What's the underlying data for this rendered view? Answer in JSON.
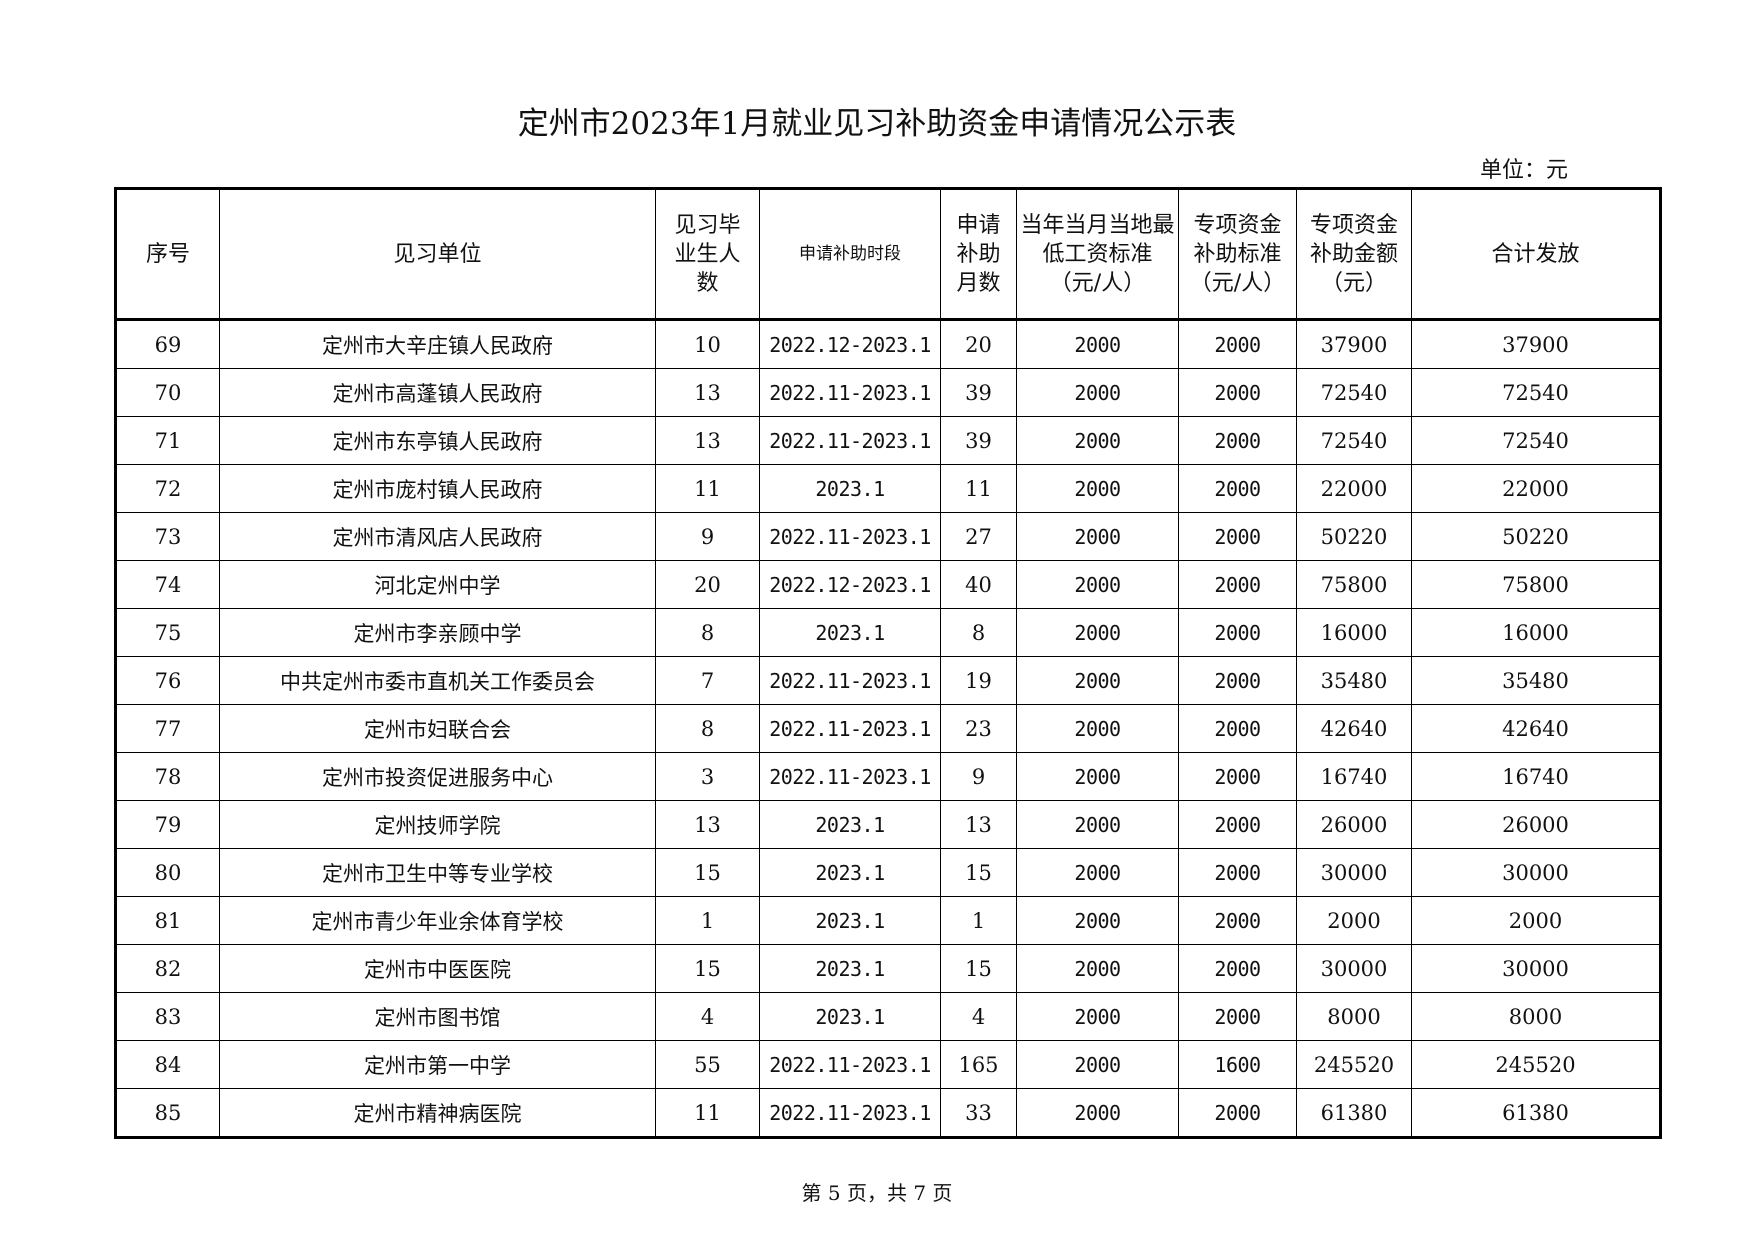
{
  "title": "定州市2023年1月就业见习补助资金申请情况公示表",
  "unit": "单位：元",
  "headers": [
    "序号",
    "见习单位",
    "见习毕业生人数",
    "申请补助时段",
    "申请补助月数",
    "当年当月当地最低工资标准（元/人）",
    "专项资金补助标准（元/人）",
    "专项资金补助金额（元）",
    "合计发放"
  ],
  "rows": [
    [
      "69",
      "定州市大辛庄镇人民政府",
      "10",
      "2022.12-2023.1",
      "20",
      "2000",
      "2000",
      "37900",
      "37900"
    ],
    [
      "70",
      "定州市高蓬镇人民政府",
      "13",
      "2022.11-2023.1",
      "39",
      "2000",
      "2000",
      "72540",
      "72540"
    ],
    [
      "71",
      "定州市东亭镇人民政府",
      "13",
      "2022.11-2023.1",
      "39",
      "2000",
      "2000",
      "72540",
      "72540"
    ],
    [
      "72",
      "定州市庞村镇人民政府",
      "11",
      "2023.1",
      "11",
      "2000",
      "2000",
      "22000",
      "22000"
    ],
    [
      "73",
      "定州市清风店人民政府",
      "9",
      "2022.11-2023.1",
      "27",
      "2000",
      "2000",
      "50220",
      "50220"
    ],
    [
      "74",
      "河北定州中学",
      "20",
      "2022.12-2023.1",
      "40",
      "2000",
      "2000",
      "75800",
      "75800"
    ],
    [
      "75",
      "定州市李亲顾中学",
      "8",
      "2023.1",
      "8",
      "2000",
      "2000",
      "16000",
      "16000"
    ],
    [
      "76",
      "中共定州市委市直机关工作委员会",
      "7",
      "2022.11-2023.1",
      "19",
      "2000",
      "2000",
      "35480",
      "35480"
    ],
    [
      "77",
      "定州市妇联合会",
      "8",
      "2022.11-2023.1",
      "23",
      "2000",
      "2000",
      "42640",
      "42640"
    ],
    [
      "78",
      "定州市投资促进服务中心",
      "3",
      "2022.11-2023.1",
      "9",
      "2000",
      "2000",
      "16740",
      "16740"
    ],
    [
      "79",
      "定州技师学院",
      "13",
      "2023.1",
      "13",
      "2000",
      "2000",
      "26000",
      "26000"
    ],
    [
      "80",
      "定州市卫生中等专业学校",
      "15",
      "2023.1",
      "15",
      "2000",
      "2000",
      "30000",
      "30000"
    ],
    [
      "81",
      "定州市青少年业余体育学校",
      "1",
      "2023.1",
      "1",
      "2000",
      "2000",
      "2000",
      "2000"
    ],
    [
      "82",
      "定州市中医医院",
      "15",
      "2023.1",
      "15",
      "2000",
      "2000",
      "30000",
      "30000"
    ],
    [
      "83",
      "定州市图书馆",
      "4",
      "2023.1",
      "4",
      "2000",
      "2000",
      "8000",
      "8000"
    ],
    [
      "84",
      "定州市第一中学",
      "55",
      "2022.11-2023.1",
      "165",
      "2000",
      "1600",
      "245520",
      "245520"
    ],
    [
      "85",
      "定州市精神病医院",
      "11",
      "2022.11-2023.1",
      "33",
      "2000",
      "2000",
      "61380",
      "61380"
    ]
  ],
  "footer": "第 5 页，共 7 页"
}
